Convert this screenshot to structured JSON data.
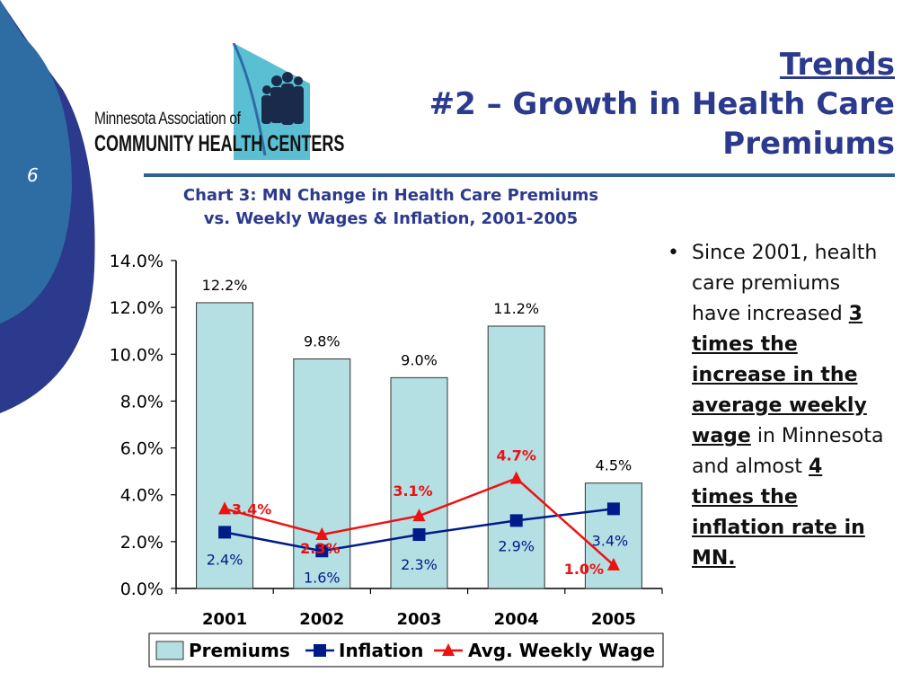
{
  "slide": {
    "number": "6",
    "logo": {
      "line1": "Minnesota Association of",
      "line2": "COMMUNITY HEALTH CENTERS"
    },
    "title": {
      "link": "Trends",
      "line1": "#2 – Growth in Health Care",
      "line2": "Premiums"
    },
    "chart_caption": {
      "line1": "Chart 3: MN Change in Health Care Premiums",
      "line2": "vs. Weekly Wages & Inflation, 2001-2005"
    },
    "bullet": {
      "t1": "Since 2001, health care premiums have increased ",
      "b1": "3 times the increase in the average weekly wage",
      "t2": " in Minnesota and almost ",
      "b2": "4 times the inflation rate in MN."
    },
    "colors": {
      "accent": "#2b3a8c",
      "premiums_fill": "#b4dfe3",
      "inflation": "#001b8a",
      "wage": "#ee1111"
    }
  },
  "chart_data": {
    "type": "bar",
    "categories": [
      "2001",
      "2002",
      "2003",
      "2004",
      "2005"
    ],
    "ylim": [
      0,
      14
    ],
    "yticks": [
      "0.0%",
      "2.0%",
      "4.0%",
      "6.0%",
      "8.0%",
      "10.0%",
      "12.0%",
      "14.0%"
    ],
    "grid": false,
    "legend_placement": "bottom",
    "series": [
      {
        "name": "Premiums",
        "type": "bar",
        "values": [
          12.2,
          9.8,
          9.0,
          11.2,
          4.5
        ],
        "labels": [
          "12.2%",
          "9.8%",
          "9.0%",
          "11.2%",
          "4.5%"
        ]
      },
      {
        "name": "Inflation",
        "type": "line",
        "values": [
          2.4,
          1.6,
          2.3,
          2.9,
          3.4
        ],
        "labels": [
          "2.4%",
          "1.6%",
          "2.3%",
          "2.9%",
          "3.4%"
        ]
      },
      {
        "name": "Avg. Weekly Wage",
        "type": "line",
        "values": [
          3.4,
          2.3,
          3.1,
          4.7,
          1.0
        ],
        "labels": [
          "3.4%",
          "2.3%",
          "3.1%",
          "4.7%",
          "1.0%"
        ]
      }
    ]
  }
}
